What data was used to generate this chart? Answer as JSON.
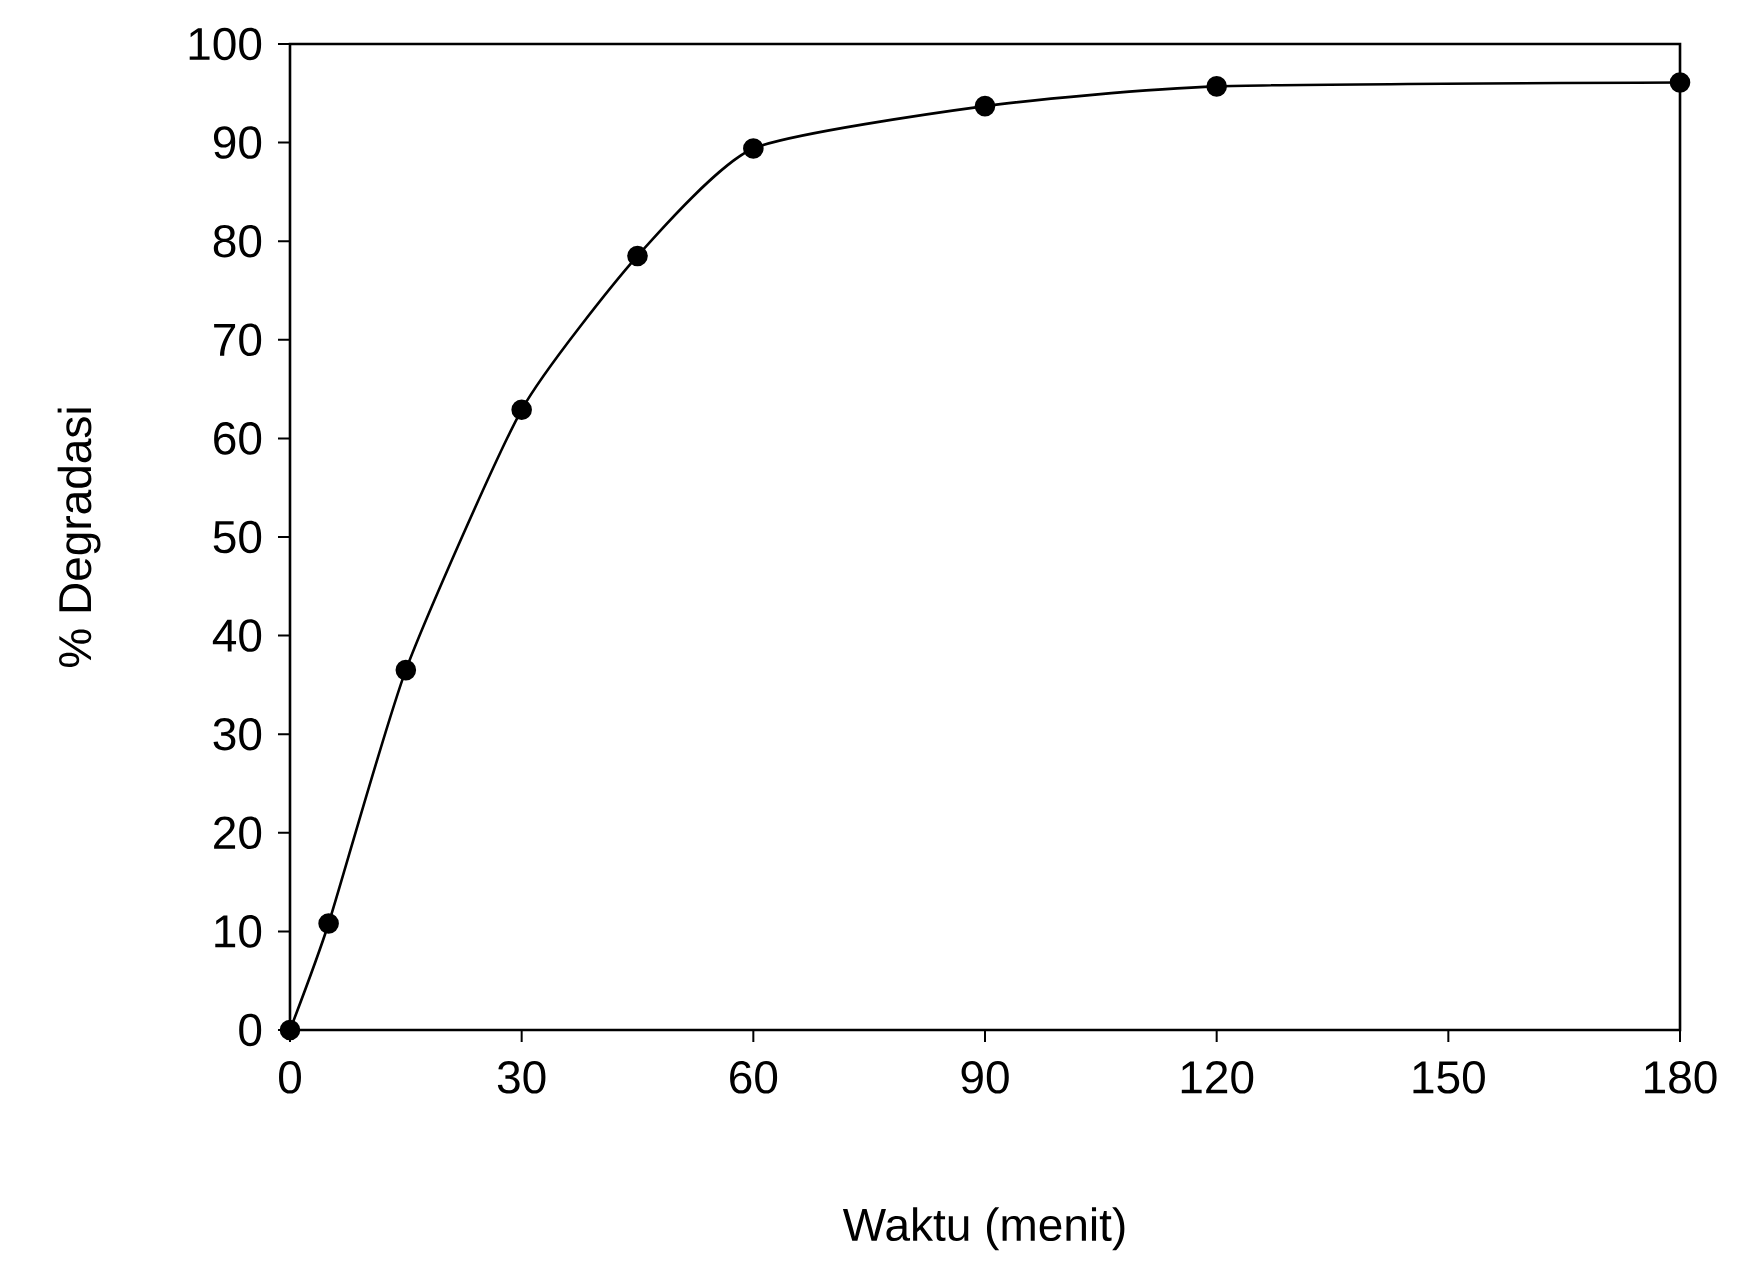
{
  "chart_data": {
    "type": "line",
    "xlabel": "Waktu (menit)",
    "ylabel": "% Degradasi",
    "x": [
      0,
      5,
      15,
      30,
      45,
      60,
      90,
      120,
      180
    ],
    "values": [
      0,
      10.8,
      36.5,
      62.9,
      78.5,
      89.4,
      93.7,
      95.7,
      96.1
    ],
    "color": "#000000",
    "marker": "circle",
    "line_style": "solid",
    "grid": false,
    "xlim": [
      0,
      180
    ],
    "xticks": [
      0,
      30,
      60,
      90,
      120,
      150,
      180
    ],
    "ylim": [
      0,
      100
    ],
    "yticks": [
      0,
      10,
      20,
      30,
      40,
      50,
      60,
      70,
      80,
      90,
      100
    ]
  }
}
